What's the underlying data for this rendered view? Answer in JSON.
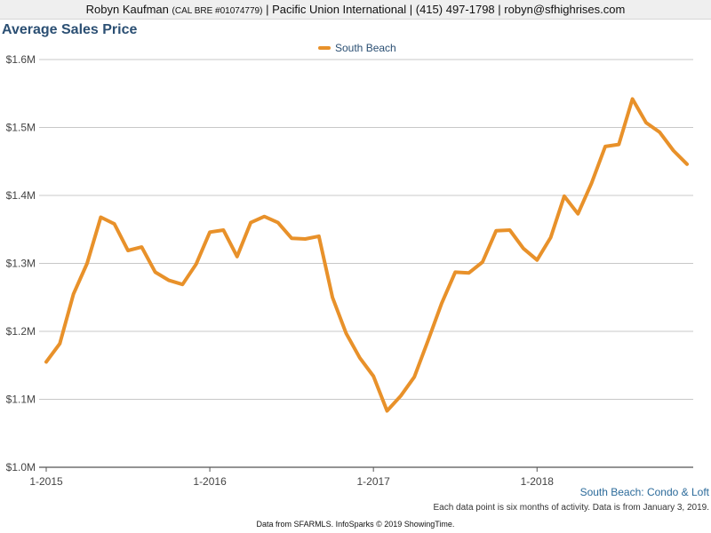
{
  "header": {
    "agent_name": "Robyn Kaufman",
    "license": "(CAL BRE #01074779)",
    "company": "Pacific Union International",
    "phone": "(415) 497-1798",
    "email": "robyn@sfhighrises.com"
  },
  "footer": {
    "region_label": "South Beach: Condo & Loft",
    "note": "Each data point is six months of activity. Data is from January 3, 2019.",
    "source": "Data from SFARMLS. InfoSparks © 2019 ShowingTime."
  },
  "colors": {
    "series": "#e8912a",
    "title": "#2b4f73",
    "grid": "#c8c8c8"
  },
  "chart_data": {
    "type": "line",
    "title": "Average Sales Price",
    "xlabel": "",
    "ylabel": "",
    "ylim": [
      1.0,
      1.6
    ],
    "y_unit": "$M",
    "y_ticks": [
      1.0,
      1.1,
      1.2,
      1.3,
      1.4,
      1.5,
      1.6
    ],
    "y_tick_labels": [
      "$1.0M",
      "$1.1M",
      "$1.2M",
      "$1.3M",
      "$1.4M",
      "$1.5M",
      "$1.6M"
    ],
    "x_ticks": [
      "1-2015",
      "1-2016",
      "1-2017",
      "1-2018"
    ],
    "x_tick_index": [
      0,
      12,
      24,
      36
    ],
    "grid": true,
    "legend_position": "top-center",
    "x": [
      "1-2015",
      "2-2015",
      "3-2015",
      "4-2015",
      "5-2015",
      "6-2015",
      "7-2015",
      "8-2015",
      "9-2015",
      "10-2015",
      "11-2015",
      "12-2015",
      "1-2016",
      "2-2016",
      "3-2016",
      "4-2016",
      "5-2016",
      "6-2016",
      "7-2016",
      "8-2016",
      "9-2016",
      "10-2016",
      "11-2016",
      "12-2016",
      "1-2017",
      "2-2017",
      "3-2017",
      "4-2017",
      "5-2017",
      "6-2017",
      "7-2017",
      "8-2017",
      "9-2017",
      "10-2017",
      "11-2017",
      "12-2017",
      "1-2018",
      "2-2018",
      "3-2018",
      "4-2018",
      "5-2018",
      "6-2018",
      "7-2018",
      "8-2018",
      "9-2018",
      "10-2018",
      "11-2018",
      "12-2018"
    ],
    "series": [
      {
        "name": "South Beach",
        "values": [
          1.155,
          1.182,
          1.255,
          1.3,
          1.368,
          1.358,
          1.319,
          1.324,
          1.287,
          1.275,
          1.269,
          1.299,
          1.346,
          1.349,
          1.31,
          1.36,
          1.369,
          1.36,
          1.337,
          1.336,
          1.34,
          1.25,
          1.197,
          1.161,
          1.134,
          1.083,
          1.105,
          1.133,
          1.186,
          1.241,
          1.287,
          1.286,
          1.302,
          1.348,
          1.349,
          1.322,
          1.305,
          1.338,
          1.399,
          1.373,
          1.418,
          1.472,
          1.475,
          1.542,
          1.507,
          1.493,
          1.466,
          1.446
        ]
      }
    ]
  }
}
